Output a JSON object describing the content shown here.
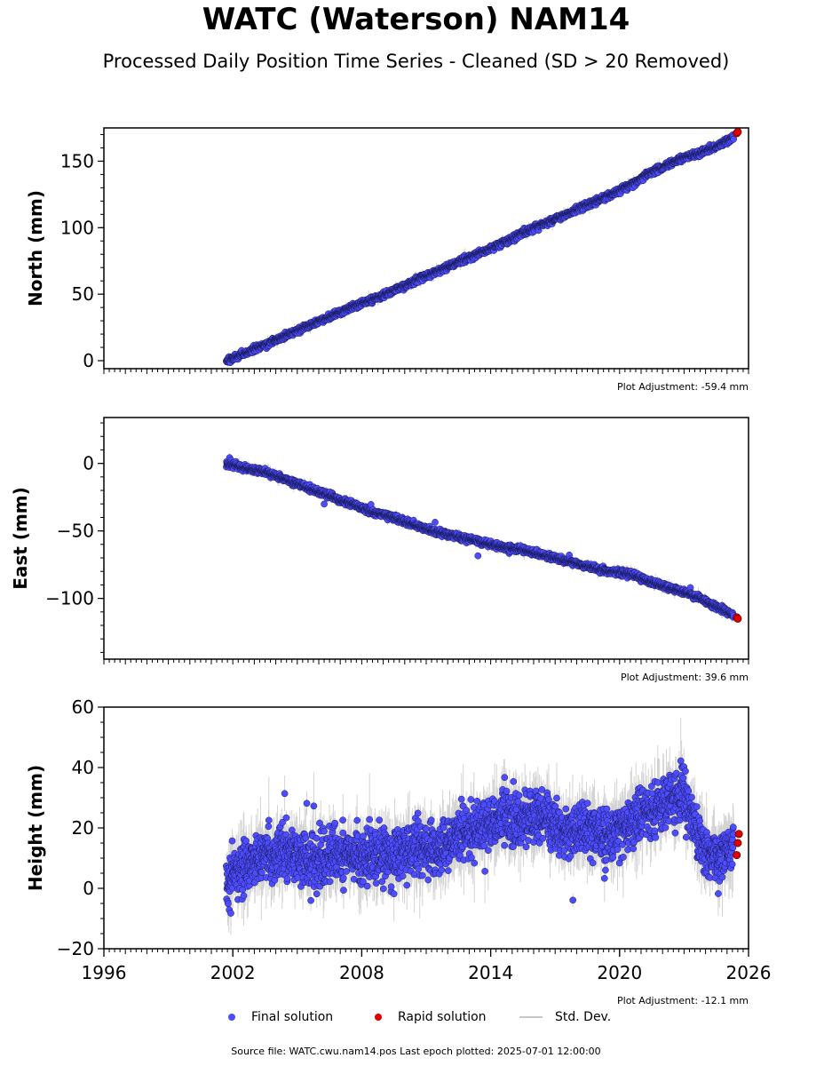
{
  "header": {
    "title": "WATC (Waterson) NAM14",
    "subtitle": "Processed Daily Position Time Series - Cleaned (SD > 20 Removed)"
  },
  "legend": {
    "final": "Final solution",
    "rapid": "Rapid solution",
    "sd": "Std. Dev."
  },
  "footer": {
    "source": "Source file: WATC.cwu.nam14.pos  Last epoch plotted: 2025-07-01 12:00:00"
  },
  "colors": {
    "final": "#4d4dff",
    "rapid": "#e00000",
    "sd": "#b0b0b0"
  },
  "chart_data": [
    {
      "type": "scatter",
      "name": "north",
      "ylabel": "North (mm)",
      "xlim": [
        1996,
        2026
      ],
      "ylim": [
        -6,
        175
      ],
      "yticks": [
        0,
        50,
        100,
        150
      ],
      "ytick_labels": [
        "0",
        "50",
        "100",
        "150"
      ],
      "adjustment": "Plot Adjustment: -59.4 mm",
      "series": [
        {
          "name": "Final solution",
          "x": [
            2001.7,
            2002.5,
            2003.5,
            2004.5,
            2005.5,
            2006.5,
            2007.5,
            2008.5,
            2009.5,
            2010.5,
            2011.5,
            2012.5,
            2013.5,
            2014.5,
            2015.5,
            2016.5,
            2017.5,
            2018.5,
            2019.5,
            2020.5,
            2021.5,
            2022.5,
            2023.0,
            2023.5,
            2024.5,
            2025.3
          ],
          "y": [
            0,
            5,
            12,
            19,
            26,
            33,
            40,
            46,
            53,
            60,
            67,
            74,
            81,
            88,
            96,
            103,
            110,
            117,
            124,
            132,
            142,
            149,
            153,
            155,
            161,
            168
          ]
        },
        {
          "name": "Rapid solution",
          "x": [
            2025.45,
            2025.5
          ],
          "y": [
            171,
            172
          ]
        }
      ]
    },
    {
      "type": "scatter",
      "name": "east",
      "ylabel": "East (mm)",
      "xlim": [
        1996,
        2026
      ],
      "ylim": [
        -145,
        34
      ],
      "yticks": [
        0,
        -50,
        -100
      ],
      "ytick_labels": [
        "0",
        "−50",
        "−100"
      ],
      "adjustment": "Plot Adjustment: 39.6 mm",
      "series": [
        {
          "name": "Final solution",
          "x": [
            2001.7,
            2002.5,
            2003.5,
            2004.5,
            2005.5,
            2006.5,
            2007.5,
            2008.5,
            2009.5,
            2010.5,
            2011.5,
            2012.5,
            2013.5,
            2014.5,
            2015.5,
            2016.5,
            2017.5,
            2018.5,
            2019.5,
            2020.5,
            2021.5,
            2022.5,
            2023.5,
            2024.5,
            2025.3
          ],
          "y": [
            0,
            -3,
            -6,
            -12,
            -18,
            -24,
            -30,
            -36,
            -40,
            -46,
            -51,
            -54,
            -58,
            -62,
            -64,
            -68,
            -72,
            -76,
            -80,
            -82,
            -88,
            -93,
            -98,
            -106,
            -112
          ]
        },
        {
          "name": "Rapid solution",
          "x": [
            2025.45,
            2025.5
          ],
          "y": [
            -114,
            -115
          ]
        }
      ]
    },
    {
      "type": "scatter",
      "name": "height",
      "ylabel": "Height (mm)",
      "xlim": [
        1996,
        2026
      ],
      "ylim": [
        -20,
        60
      ],
      "yticks": [
        -20,
        0,
        20,
        40,
        60
      ],
      "ytick_labels": [
        "−20",
        "0",
        "20",
        "40",
        "60"
      ],
      "xticks": [
        1996,
        2002,
        2008,
        2014,
        2020,
        2026
      ],
      "xtick_labels": [
        "1996",
        "2002",
        "2008",
        "2014",
        "2020",
        "2026"
      ],
      "adjustment": "Plot Adjustment: -12.1 mm",
      "series": [
        {
          "name": "Final solution",
          "x": [
            2001.7,
            2002.5,
            2003.5,
            2004.5,
            2005.5,
            2006.5,
            2007.5,
            2008.5,
            2009.5,
            2010.5,
            2011.5,
            2012.5,
            2013.5,
            2014.5,
            2015.5,
            2016.5,
            2017.5,
            2018.5,
            2019.5,
            2020.5,
            2021.5,
            2022.5,
            2023.0,
            2023.5,
            2024.0,
            2024.5,
            2025.3
          ],
          "y": [
            2,
            8,
            10,
            12,
            9,
            11,
            10,
            12,
            11,
            13,
            12,
            18,
            20,
            24,
            22,
            25,
            18,
            20,
            16,
            22,
            26,
            30,
            32,
            20,
            12,
            10,
            15
          ]
        },
        {
          "name": "Rapid solution",
          "x": [
            2025.45,
            2025.5,
            2025.55
          ],
          "y": [
            11,
            15,
            18
          ]
        }
      ]
    }
  ]
}
